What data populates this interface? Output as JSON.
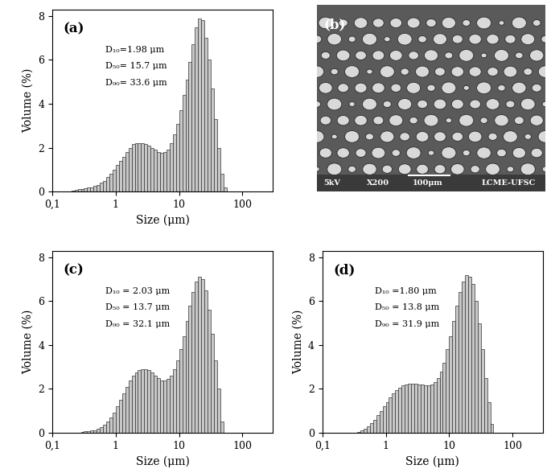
{
  "chart_data": [
    {
      "type": "histogram",
      "title": "(a)",
      "x_label": "Size (μm)",
      "y_label": "Volume (%)",
      "annotations": [
        "D₁₀=1.98 μm",
        "D₅₀= 15.7 μm",
        "D₉₀= 33.6 μm"
      ],
      "log": "x",
      "color": "#c8c8c8",
      "xlim": [
        0.1,
        300
      ],
      "xticks": [
        {
          "value": 0.1,
          "label": "0,1"
        },
        1,
        10,
        100
      ],
      "ylim": [
        0,
        8.3
      ],
      "yticks": [
        0,
        2,
        4,
        6,
        8
      ],
      "bins": [
        0.2,
        0.224,
        0.251,
        0.282,
        0.316,
        0.355,
        0.398,
        0.447,
        0.501,
        0.562,
        0.631,
        0.708,
        0.794,
        0.891,
        1.0,
        1.12,
        1.26,
        1.41,
        1.58,
        1.78,
        2.0,
        2.24,
        2.51,
        2.82,
        3.16,
        3.55,
        3.98,
        4.47,
        5.01,
        5.62,
        6.31,
        7.08,
        7.94,
        8.91,
        10.0,
        11.2,
        12.6,
        14.1,
        15.8,
        17.8,
        20.0,
        22.4,
        25.1,
        28.2,
        31.6,
        35.5,
        39.8,
        44.7,
        50.1,
        56.2
      ],
      "counts": [
        0.05,
        0.08,
        0.1,
        0.12,
        0.15,
        0.18,
        0.2,
        0.25,
        0.3,
        0.4,
        0.5,
        0.65,
        0.8,
        1.0,
        1.2,
        1.4,
        1.6,
        1.8,
        2.0,
        2.15,
        2.2,
        2.2,
        2.2,
        2.15,
        2.1,
        2.0,
        1.9,
        1.8,
        1.75,
        1.8,
        1.9,
        2.2,
        2.6,
        3.1,
        3.7,
        4.4,
        5.1,
        5.9,
        6.7,
        7.5,
        7.9,
        7.8,
        7.0,
        6.0,
        4.7,
        3.3,
        2.0,
        0.8,
        0.2
      ]
    },
    {
      "type": "image",
      "title": "(b)",
      "annotations": [
        "5kV",
        "X200",
        "100μm",
        "LCME-UFSC"
      ]
    },
    {
      "type": "histogram",
      "title": "(c)",
      "x_label": "Size (μm)",
      "y_label": "Volume (%)",
      "annotations": [
        "D₁₀ = 2.03 μm",
        "D₅₀ = 13.7 μm",
        "D₉₀ = 32.1 μm"
      ],
      "log": "x",
      "color": "#c8c8c8",
      "xlim": [
        0.1,
        300
      ],
      "xticks": [
        {
          "value": 0.1,
          "label": "0,1"
        },
        1,
        10,
        100
      ],
      "ylim": [
        0,
        8.3
      ],
      "yticks": [
        0,
        2,
        4,
        6,
        8
      ],
      "bins": [
        0.2,
        0.224,
        0.251,
        0.282,
        0.316,
        0.355,
        0.398,
        0.447,
        0.501,
        0.562,
        0.631,
        0.708,
        0.794,
        0.891,
        1.0,
        1.12,
        1.26,
        1.41,
        1.58,
        1.78,
        2.0,
        2.24,
        2.51,
        2.82,
        3.16,
        3.55,
        3.98,
        4.47,
        5.01,
        5.62,
        6.31,
        7.08,
        7.94,
        8.91,
        10.0,
        11.2,
        12.6,
        14.1,
        15.8,
        17.8,
        20.0,
        22.4,
        25.1,
        28.2,
        31.6,
        35.5,
        39.8,
        44.7,
        50.1,
        56.2
      ],
      "counts": [
        0,
        0,
        0,
        0.05,
        0.07,
        0.08,
        0.1,
        0.12,
        0.18,
        0.25,
        0.35,
        0.5,
        0.7,
        0.9,
        1.2,
        1.5,
        1.8,
        2.1,
        2.4,
        2.6,
        2.75,
        2.85,
        2.9,
        2.9,
        2.85,
        2.75,
        2.6,
        2.5,
        2.4,
        2.4,
        2.45,
        2.6,
        2.9,
        3.3,
        3.8,
        4.4,
        5.1,
        5.8,
        6.4,
        6.9,
        7.1,
        7.0,
        6.5,
        5.6,
        4.5,
        3.3,
        2.0,
        0.5,
        0
      ]
    },
    {
      "type": "histogram",
      "title": "(d)",
      "x_label": "Size (μm)",
      "y_label": "Volume (%)",
      "annotations": [
        "D₁₀ =1.80 μm",
        "D₅₀ = 13.8 μm",
        "D₉₀ = 31.9 μm"
      ],
      "log": "x",
      "color": "#c8c8c8",
      "xlim": [
        0.1,
        300
      ],
      "xticks": [
        {
          "value": 0.1,
          "label": "0,1"
        },
        1,
        10,
        100
      ],
      "ylim": [
        0,
        8.3
      ],
      "yticks": [
        0,
        2,
        4,
        6,
        8
      ],
      "bins": [
        0.2,
        0.224,
        0.251,
        0.282,
        0.316,
        0.355,
        0.398,
        0.447,
        0.501,
        0.562,
        0.631,
        0.708,
        0.794,
        0.891,
        1.0,
        1.12,
        1.26,
        1.41,
        1.58,
        1.78,
        2.0,
        2.24,
        2.51,
        2.82,
        3.16,
        3.55,
        3.98,
        4.47,
        5.01,
        5.62,
        6.31,
        7.08,
        7.94,
        8.91,
        10.0,
        11.2,
        12.6,
        14.1,
        15.8,
        17.8,
        20.0,
        22.4,
        25.1,
        28.2,
        31.6,
        35.5,
        39.8,
        44.7,
        50.1,
        56.2
      ],
      "counts": [
        0,
        0,
        0,
        0,
        0,
        0.05,
        0.1,
        0.2,
        0.3,
        0.45,
        0.6,
        0.8,
        1.0,
        1.2,
        1.4,
        1.6,
        1.8,
        1.95,
        2.05,
        2.15,
        2.2,
        2.25,
        2.25,
        2.25,
        2.2,
        2.2,
        2.15,
        2.15,
        2.2,
        2.3,
        2.5,
        2.8,
        3.2,
        3.8,
        4.4,
        5.1,
        5.8,
        6.4,
        6.9,
        7.2,
        7.1,
        6.8,
        6.0,
        5.0,
        3.8,
        2.5,
        1.4,
        0.4,
        0
      ]
    }
  ]
}
